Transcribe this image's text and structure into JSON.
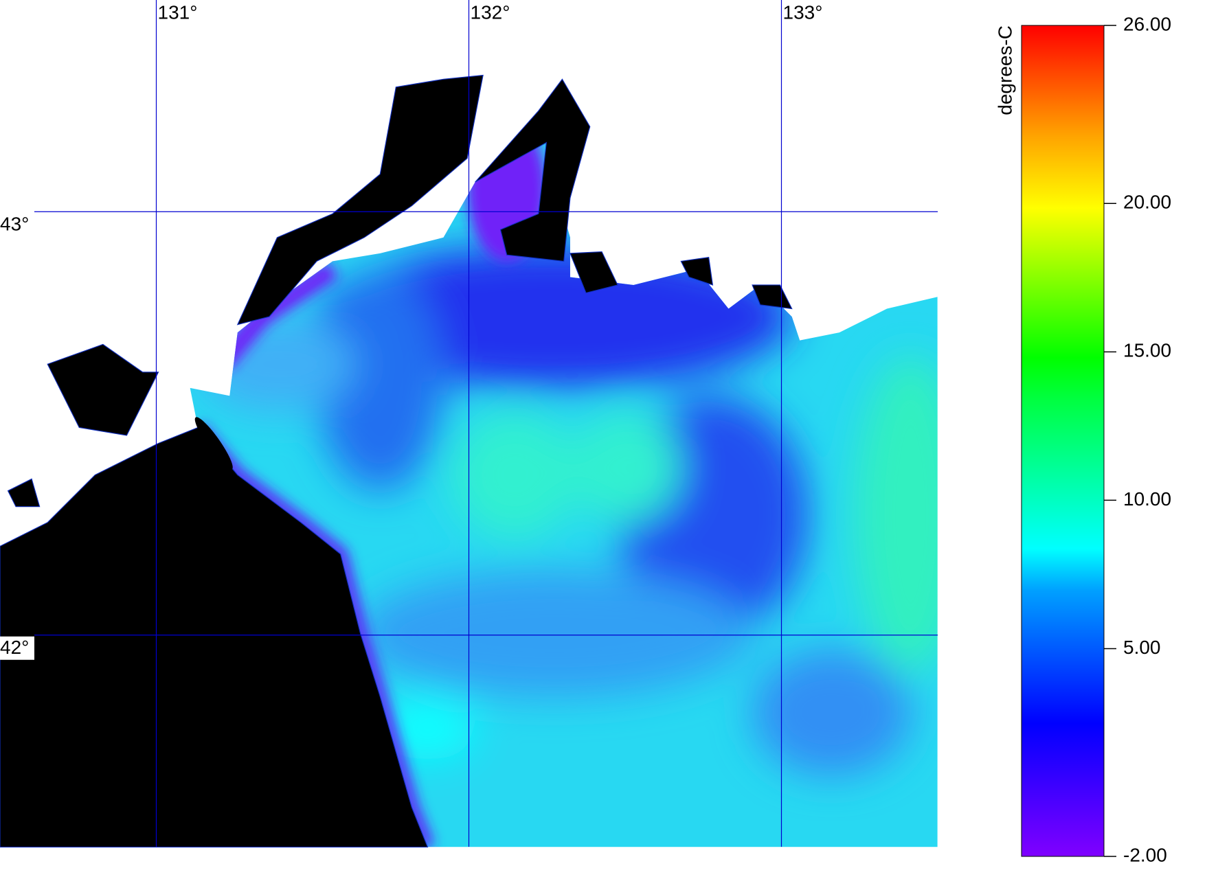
{
  "map": {
    "lonlim": [
      130.5,
      133.5
    ],
    "latlim": [
      41.5,
      43.5
    ],
    "lonticks": [
      {
        "value": 131,
        "label": "131°"
      },
      {
        "value": 132,
        "label": "132°"
      },
      {
        "value": 133,
        "label": "133°"
      }
    ],
    "latticks": [
      {
        "value": 43,
        "label": "43°"
      },
      {
        "value": 42,
        "label": "42°"
      }
    ]
  },
  "colorbar": {
    "label": "degrees-C",
    "lim": [
      -2,
      26
    ],
    "ticks": [
      {
        "value": -2,
        "label": "-2.00"
      },
      {
        "value": 5,
        "label": "5.00"
      },
      {
        "value": 10,
        "label": "10.00"
      },
      {
        "value": 15,
        "label": "15.00"
      },
      {
        "value": 20,
        "label": "20.00"
      },
      {
        "value": 26,
        "label": "26.00"
      }
    ]
  }
}
